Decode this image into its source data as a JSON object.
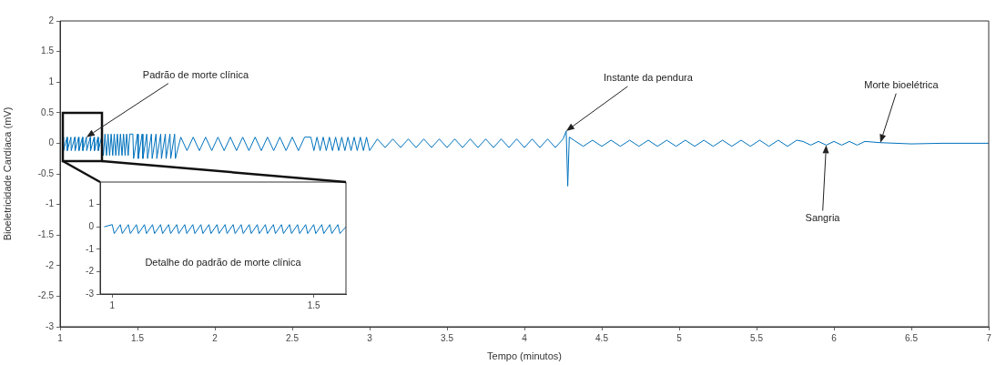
{
  "chart_data": [
    {
      "type": "line",
      "xlabel": "Tempo (minutos)",
      "ylabel": "Bioeletricidade Cardíaca (mV)",
      "xlim": [
        1,
        7
      ],
      "xticks": [
        1,
        1.5,
        2,
        2.5,
        3,
        3.5,
        4,
        4.5,
        5,
        5.5,
        6,
        6.5,
        7
      ],
      "ylim": [
        -3,
        2
      ],
      "yticks": [
        -3,
        -2.5,
        -2,
        -1.5,
        -1,
        -0.5,
        0,
        0.5,
        1,
        1.5,
        2
      ],
      "grid": false,
      "marker": "none",
      "line_style": "solid",
      "annotations": [
        {
          "text": "Padrão de morte clínica",
          "x": 1.17,
          "y": 0.1
        },
        {
          "text": "Instante da pendura",
          "x": 4.27,
          "y": 0.2
        },
        {
          "text": "Sangria",
          "x": 5.95,
          "y": -0.03
        },
        {
          "text": "Morte bioelétrica",
          "x": 6.3,
          "y": 0.01
        }
      ],
      "series": [
        {
          "color": "#0072bd",
          "x": [
            1.02,
            1.022,
            1.045,
            1.047,
            1.07,
            1.072,
            1.095,
            1.097,
            1.12,
            1.122,
            1.145,
            1.147,
            1.17,
            1.172,
            1.195,
            1.197,
            1.22,
            1.222,
            1.245,
            1.247,
            1.27,
            1.28,
            1.29,
            1.3,
            1.31,
            1.32,
            1.33,
            1.34,
            1.35,
            1.36,
            1.37,
            1.38,
            1.39,
            1.4,
            1.41,
            1.42,
            1.43,
            1.44,
            1.45,
            1.47,
            1.475,
            1.5,
            1.505,
            1.53,
            1.535,
            1.56,
            1.565,
            1.59,
            1.595,
            1.62,
            1.625,
            1.65,
            1.655,
            1.68,
            1.685,
            1.71,
            1.715,
            1.74,
            1.745,
            1.78,
            1.82,
            1.86,
            1.9,
            1.94,
            1.98,
            2.02,
            2.06,
            2.1,
            2.14,
            2.18,
            2.22,
            2.26,
            2.3,
            2.34,
            2.38,
            2.42,
            2.46,
            2.5,
            2.54,
            2.58,
            2.62,
            2.64,
            2.66,
            2.68,
            2.7,
            2.72,
            2.74,
            2.76,
            2.78,
            2.8,
            2.82,
            2.84,
            2.86,
            2.88,
            2.9,
            2.92,
            2.94,
            2.96,
            2.98,
            3.0,
            3.05,
            3.1,
            3.15,
            3.2,
            3.25,
            3.3,
            3.35,
            3.4,
            3.45,
            3.5,
            3.55,
            3.6,
            3.65,
            3.7,
            3.75,
            3.8,
            3.85,
            3.9,
            3.95,
            4.0,
            4.05,
            4.1,
            4.15,
            4.2,
            4.25,
            4.27,
            4.28,
            4.29,
            4.32,
            4.38,
            4.44,
            4.5,
            4.56,
            4.62,
            4.68,
            4.74,
            4.8,
            4.86,
            4.92,
            4.98,
            5.04,
            5.1,
            5.16,
            5.22,
            5.28,
            5.34,
            5.4,
            5.46,
            5.52,
            5.58,
            5.64,
            5.7,
            5.76,
            5.8,
            5.85,
            5.9,
            5.95,
            6.0,
            6.05,
            6.1,
            6.15,
            6.2,
            6.3,
            6.5,
            6.7,
            7.0
          ],
          "values": [
            0.1,
            -0.12,
            0.1,
            -0.12,
            0.1,
            -0.12,
            0.1,
            -0.12,
            0.1,
            -0.12,
            0.1,
            -0.12,
            0.1,
            -0.12,
            0.1,
            -0.12,
            0.1,
            -0.12,
            0.1,
            -0.12,
            0.12,
            -0.2,
            0.15,
            -0.2,
            0.15,
            -0.2,
            0.15,
            -0.2,
            0.15,
            -0.2,
            0.15,
            -0.2,
            0.15,
            -0.2,
            0.15,
            -0.2,
            0.15,
            -0.2,
            0.15,
            0.15,
            -0.25,
            0.15,
            -0.25,
            0.15,
            -0.25,
            0.15,
            -0.25,
            0.15,
            -0.25,
            0.15,
            -0.25,
            0.15,
            -0.25,
            0.15,
            -0.25,
            0.15,
            -0.25,
            0.15,
            -0.25,
            0.1,
            -0.12,
            0.1,
            -0.12,
            0.1,
            -0.12,
            0.1,
            -0.12,
            0.1,
            -0.12,
            0.1,
            -0.12,
            0.1,
            -0.12,
            0.1,
            -0.12,
            0.1,
            -0.12,
            0.1,
            -0.12,
            0.1,
            0.1,
            -0.12,
            0.1,
            -0.12,
            0.1,
            -0.12,
            0.1,
            -0.12,
            0.1,
            -0.12,
            0.1,
            -0.12,
            0.1,
            -0.12,
            0.1,
            -0.12,
            0.1,
            -0.12,
            0.1,
            -0.12,
            0.07,
            -0.07,
            0.07,
            -0.07,
            0.07,
            -0.07,
            0.07,
            -0.07,
            0.07,
            -0.07,
            0.07,
            -0.07,
            0.07,
            -0.07,
            0.07,
            -0.07,
            0.07,
            -0.07,
            0.07,
            -0.07,
            0.07,
            -0.07,
            0.07,
            -0.07,
            0.07,
            0.2,
            -0.7,
            0.1,
            0.05,
            -0.05,
            0.05,
            -0.05,
            0.05,
            -0.05,
            0.05,
            -0.05,
            0.05,
            -0.05,
            0.05,
            -0.05,
            0.05,
            -0.05,
            0.05,
            -0.05,
            0.05,
            -0.05,
            0.05,
            -0.05,
            0.05,
            -0.05,
            0.05,
            -0.05,
            0.05,
            0.03,
            -0.03,
            0.03,
            -0.03,
            0.03,
            -0.03,
            0.03,
            -0.03,
            0.03,
            0.01,
            -0.01,
            0,
            0
          ]
        }
      ]
    },
    {
      "type": "line",
      "xlim": [
        0.97,
        1.58
      ],
      "xticks": [
        1,
        1.5
      ],
      "ylim": [
        -3,
        2
      ],
      "yticks": [
        -3,
        -2,
        -1,
        0,
        1
      ],
      "grid": false,
      "marker": "none",
      "line_style": "solid",
      "annotations": [
        "Detalhe do padrão de morte clínica"
      ],
      "series": [
        {
          "color": "#0072bd",
          "x": [
            0.98,
            1.0,
            1.005,
            1.02,
            1.025,
            1.04,
            1.045,
            1.06,
            1.065,
            1.08,
            1.085,
            1.1,
            1.105,
            1.12,
            1.125,
            1.14,
            1.145,
            1.16,
            1.165,
            1.18,
            1.185,
            1.2,
            1.205,
            1.22,
            1.225,
            1.24,
            1.245,
            1.26,
            1.265,
            1.28,
            1.285,
            1.3,
            1.305,
            1.32,
            1.325,
            1.34,
            1.345,
            1.36,
            1.365,
            1.38,
            1.385,
            1.4,
            1.405,
            1.42,
            1.425,
            1.44,
            1.445,
            1.46,
            1.465,
            1.48,
            1.485,
            1.5,
            1.505,
            1.52,
            1.525,
            1.54,
            1.545,
            1.56,
            1.565,
            1.58
          ],
          "values": [
            0,
            0.1,
            -0.3,
            0.1,
            -0.3,
            0.1,
            -0.3,
            0.1,
            -0.3,
            0.1,
            -0.3,
            0.1,
            -0.3,
            0.1,
            -0.3,
            0.1,
            -0.3,
            0.1,
            -0.3,
            0.1,
            -0.3,
            0.1,
            -0.3,
            0.1,
            -0.3,
            0.1,
            -0.3,
            0.1,
            -0.3,
            0.1,
            -0.3,
            0.1,
            -0.3,
            0.1,
            -0.3,
            0.1,
            -0.3,
            0.1,
            -0.3,
            0.1,
            -0.3,
            0.1,
            -0.3,
            0.1,
            -0.3,
            0.1,
            -0.3,
            0.1,
            -0.3,
            0.1,
            -0.3,
            0.1,
            -0.3,
            0.1,
            -0.3,
            0.1,
            -0.3,
            0.1,
            -0.3,
            0
          ]
        }
      ]
    }
  ]
}
